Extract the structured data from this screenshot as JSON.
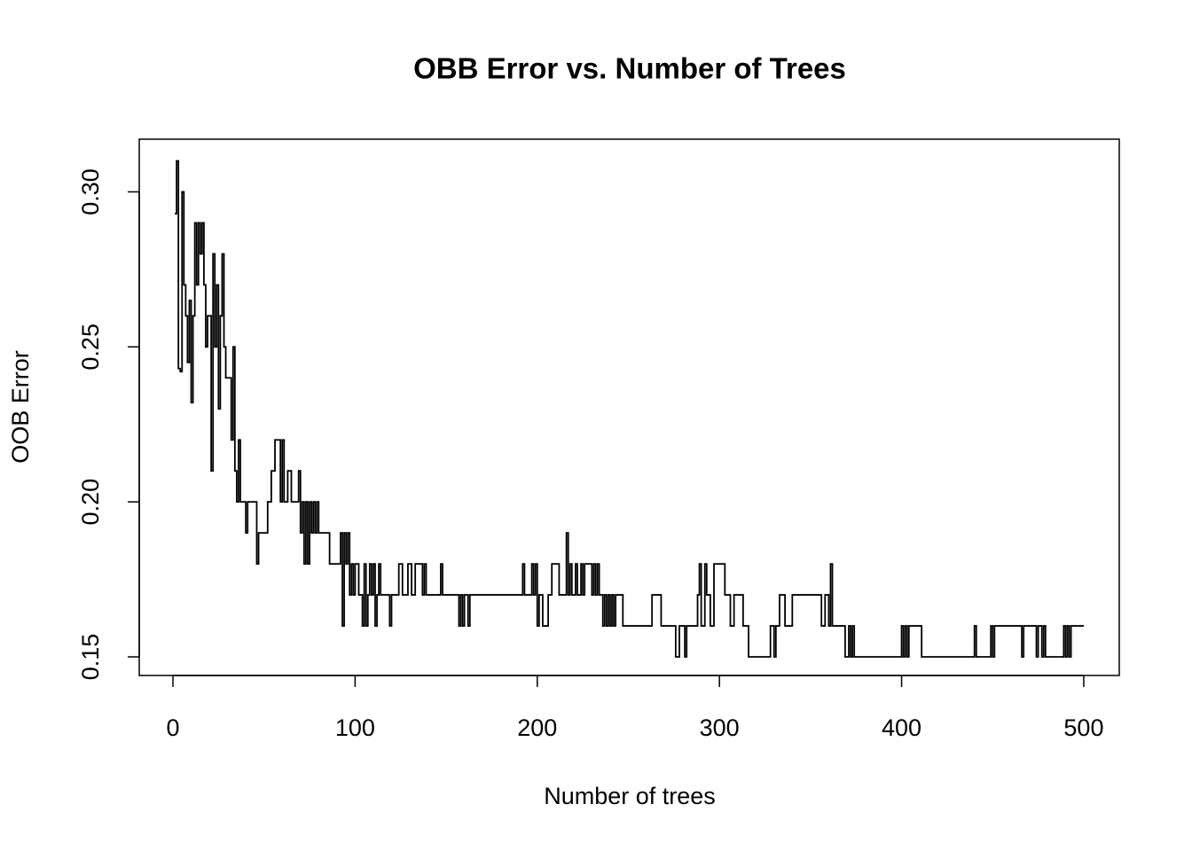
{
  "chart_data": {
    "type": "step",
    "title": "OBB Error vs. Number of Trees",
    "xlabel": "Number of trees",
    "ylabel": "OOB Error",
    "color": "#000000",
    "xlim": [
      -18.5,
      519.5
    ],
    "ylim": [
      0.144,
      0.317
    ],
    "xticks": [
      0,
      100,
      200,
      300,
      400,
      500
    ],
    "yticks": [
      0.15,
      {
        "value": 0.2,
        "label": "0.20"
      },
      0.25,
      {
        "value": 0.3,
        "label": "0.30"
      }
    ],
    "x": [
      1,
      2,
      3,
      4,
      5,
      6,
      7,
      8,
      9,
      10,
      11,
      12,
      13,
      14,
      15,
      16,
      17,
      18,
      19,
      20,
      21,
      22,
      23,
      24,
      25,
      26,
      27,
      28,
      29,
      31,
      32,
      33,
      34,
      35,
      36,
      37,
      40,
      41,
      46,
      47,
      52,
      54,
      56,
      59,
      60,
      61,
      63,
      65,
      69,
      70,
      71,
      72,
      73,
      74,
      75,
      76,
      77,
      78,
      79,
      80,
      86,
      92,
      93,
      94,
      95,
      96,
      97,
      98,
      99,
      100,
      102,
      104,
      105,
      106,
      107,
      108,
      109,
      110,
      111,
      112,
      113,
      114,
      119,
      120,
      124,
      126,
      129,
      131,
      133,
      137,
      138,
      139,
      147,
      148,
      157,
      158,
      159,
      160,
      162,
      163,
      192,
      193,
      197,
      198,
      199,
      200,
      201,
      203,
      206,
      208,
      212,
      216,
      217,
      218,
      219,
      221,
      222,
      224,
      225,
      226,
      230,
      231,
      232,
      233,
      234,
      236,
      237,
      238,
      239,
      240,
      241,
      242,
      243,
      247,
      263,
      268,
      276,
      278,
      281,
      282,
      288,
      289,
      290,
      292,
      293,
      295,
      297,
      303,
      306,
      308,
      313,
      316,
      328,
      330,
      331,
      333,
      336,
      340,
      356,
      358,
      360,
      361,
      362,
      369,
      371,
      372,
      373,
      374,
      400,
      401,
      402,
      403,
      404,
      411,
      440,
      441,
      449,
      450,
      451,
      466,
      467,
      474,
      475,
      477,
      478,
      479,
      489,
      490,
      491,
      492,
      493,
      500
    ],
    "values": [
      0.293,
      0.31,
      0.243,
      0.242,
      0.3,
      0.27,
      0.26,
      0.245,
      0.265,
      0.232,
      0.26,
      0.29,
      0.27,
      0.29,
      0.28,
      0.29,
      0.27,
      0.25,
      0.26,
      0.26,
      0.21,
      0.28,
      0.25,
      0.27,
      0.23,
      0.26,
      0.28,
      0.25,
      0.24,
      0.24,
      0.22,
      0.25,
      0.21,
      0.2,
      0.22,
      0.2,
      0.19,
      0.2,
      0.18,
      0.19,
      0.2,
      0.21,
      0.22,
      0.2,
      0.22,
      0.2,
      0.21,
      0.2,
      0.21,
      0.19,
      0.2,
      0.18,
      0.2,
      0.18,
      0.2,
      0.19,
      0.2,
      0.19,
      0.2,
      0.19,
      0.18,
      0.19,
      0.16,
      0.19,
      0.18,
      0.19,
      0.17,
      0.18,
      0.17,
      0.18,
      0.17,
      0.16,
      0.18,
      0.16,
      0.17,
      0.18,
      0.17,
      0.18,
      0.16,
      0.17,
      0.18,
      0.17,
      0.16,
      0.17,
      0.18,
      0.17,
      0.18,
      0.17,
      0.18,
      0.17,
      0.18,
      0.17,
      0.18,
      0.17,
      0.16,
      0.17,
      0.16,
      0.17,
      0.16,
      0.17,
      0.18,
      0.17,
      0.18,
      0.17,
      0.18,
      0.16,
      0.17,
      0.16,
      0.17,
      0.18,
      0.17,
      0.19,
      0.17,
      0.18,
      0.17,
      0.18,
      0.17,
      0.18,
      0.17,
      0.18,
      0.17,
      0.18,
      0.17,
      0.18,
      0.17,
      0.16,
      0.17,
      0.16,
      0.17,
      0.16,
      0.17,
      0.16,
      0.17,
      0.16,
      0.17,
      0.16,
      0.15,
      0.16,
      0.15,
      0.16,
      0.17,
      0.18,
      0.16,
      0.18,
      0.17,
      0.16,
      0.18,
      0.17,
      0.16,
      0.17,
      0.16,
      0.15,
      0.16,
      0.15,
      0.16,
      0.17,
      0.16,
      0.17,
      0.16,
      0.17,
      0.16,
      0.18,
      0.16,
      0.15,
      0.16,
      0.15,
      0.16,
      0.15,
      0.16,
      0.15,
      0.16,
      0.15,
      0.16,
      0.15,
      0.16,
      0.15,
      0.16,
      0.15,
      0.16,
      0.15,
      0.16,
      0.15,
      0.16,
      0.15,
      0.16,
      0.15,
      0.16,
      0.15,
      0.16,
      0.15,
      0.16,
      0.16
    ]
  }
}
